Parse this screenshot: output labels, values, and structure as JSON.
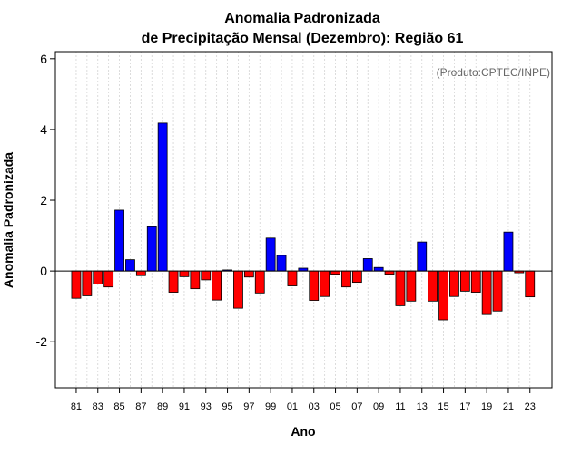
{
  "chart_data": {
    "type": "bar",
    "title_line1": "Anomalia Padronizada",
    "title_line2": "de Precipitação Mensal (Dezembro): Região 61",
    "xlabel": "Ano",
    "ylabel": "Anomalia Padronizada",
    "annotation": "(Produto:CPTEC/INPE)",
    "categories": [
      "81",
      "82",
      "83",
      "84",
      "85",
      "86",
      "87",
      "88",
      "89",
      "90",
      "91",
      "92",
      "93",
      "94",
      "95",
      "96",
      "97",
      "98",
      "99",
      "00",
      "01",
      "02",
      "03",
      "04",
      "05",
      "06",
      "07",
      "08",
      "09",
      "10",
      "11",
      "12",
      "13",
      "14",
      "15",
      "16",
      "17",
      "18",
      "19",
      "20",
      "21",
      "22",
      "23"
    ],
    "tick_labels": [
      "81",
      "83",
      "85",
      "87",
      "89",
      "91",
      "93",
      "95",
      "97",
      "99",
      "01",
      "03",
      "05",
      "07",
      "09",
      "11",
      "13",
      "15",
      "17",
      "19",
      "21",
      "23"
    ],
    "values": [
      -0.77,
      -0.7,
      -0.37,
      -0.45,
      1.72,
      0.32,
      -0.13,
      1.25,
      4.18,
      -0.6,
      -0.16,
      -0.5,
      -0.25,
      -0.82,
      0.03,
      -1.05,
      -0.17,
      -0.62,
      0.93,
      0.44,
      -0.42,
      0.08,
      -0.83,
      -0.72,
      -0.09,
      -0.45,
      -0.32,
      0.35,
      0.1,
      -0.09,
      -0.98,
      -0.85,
      0.82,
      -0.85,
      -1.38,
      -0.72,
      -0.57,
      -0.6,
      -1.23,
      -1.13,
      1.1,
      -0.05,
      -0.73
    ],
    "yticks": [
      -2,
      0,
      2,
      4,
      6
    ],
    "ylim": [
      -3.3,
      6.2
    ],
    "grid": true,
    "colors": {
      "positive": "#0000ff",
      "negative": "#ff0000",
      "grid": "#d3d3d3",
      "annotation": "#666666"
    }
  }
}
